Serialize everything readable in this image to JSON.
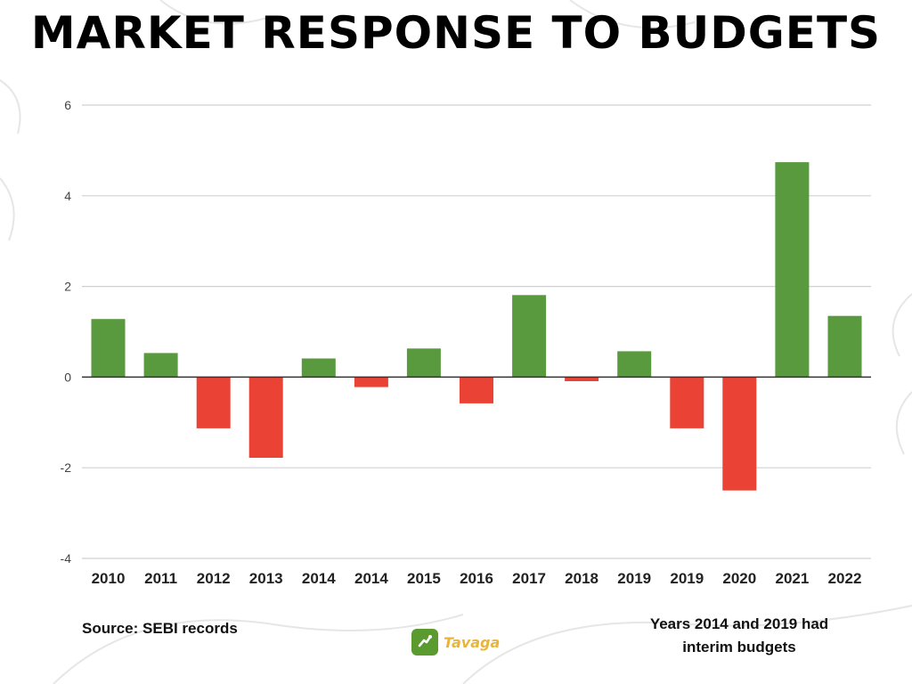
{
  "title": "MARKET RESPONSE TO BUDGETS",
  "source": "Source: SEBI records",
  "note": {
    "line1": "Years 2014 and 2019 had",
    "line2": "interim budgets"
  },
  "brand": {
    "name": "Tavaga",
    "icon": "tavaga-logo-icon"
  },
  "colors": {
    "positive": "#5a9a3f",
    "negative": "#ea4335",
    "grid": "#d0d0d0",
    "axis": "#333333"
  },
  "chart_data": {
    "type": "bar",
    "title": "MARKET RESPONSE TO BUDGETS",
    "xlabel": "",
    "ylabel": "",
    "ylim": [
      -4,
      6
    ],
    "yticks": [
      -4,
      -2,
      0,
      2,
      4,
      6
    ],
    "grid": true,
    "categories": [
      "2010",
      "2011",
      "2012",
      "2013",
      "2014",
      "2014",
      "2015",
      "2016",
      "2017",
      "2018",
      "2019",
      "2019",
      "2020",
      "2021",
      "2022"
    ],
    "values": [
      1.28,
      0.53,
      -1.13,
      -1.78,
      0.41,
      -0.22,
      0.63,
      -0.58,
      1.81,
      -0.09,
      0.57,
      -1.13,
      -2.5,
      4.74,
      1.35
    ]
  }
}
